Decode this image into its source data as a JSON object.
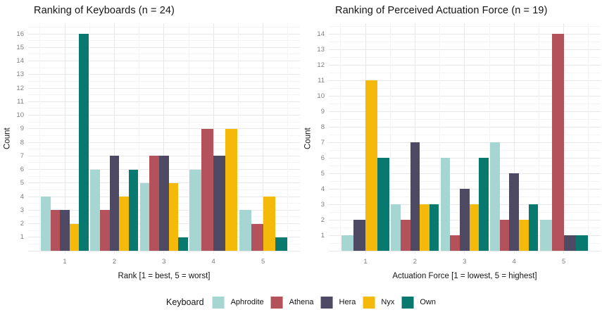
{
  "legend": {
    "title": "Keyboard",
    "entries": [
      {
        "label": "Aphrodite",
        "color": "#a5d6d2"
      },
      {
        "label": "Athena",
        "color": "#b4525b"
      },
      {
        "label": "Hera",
        "color": "#4f4a63"
      },
      {
        "label": "Nyx",
        "color": "#f5b90a"
      },
      {
        "label": "Own",
        "color": "#07796f"
      }
    ]
  },
  "chart_data": [
    {
      "type": "bar",
      "title": "Ranking of Keyboards (n = 24)",
      "xlabel": "Rank [1 = best, 5 = worst]",
      "ylabel": "Count",
      "categories": [
        "1",
        "2",
        "3",
        "4",
        "5"
      ],
      "series": [
        {
          "name": "Aphrodite",
          "color": "#a5d6d2",
          "values": [
            4,
            6,
            5,
            6,
            3
          ]
        },
        {
          "name": "Athena",
          "color": "#b4525b",
          "values": [
            3,
            3,
            7,
            9,
            2
          ]
        },
        {
          "name": "Hera",
          "color": "#4f4a63",
          "values": [
            3,
            7,
            7,
            7,
            0
          ]
        },
        {
          "name": "Nyx",
          "color": "#f5b90a",
          "values": [
            2,
            4,
            5,
            9,
            4
          ]
        },
        {
          "name": "Own",
          "color": "#07796f",
          "values": [
            16,
            6,
            1,
            0,
            1
          ]
        }
      ],
      "ylim": [
        0,
        16
      ],
      "ytick_step": 1,
      "grid": true,
      "legend_position": "bottom",
      "bar_mode": "dodge-hide-zeros"
    },
    {
      "type": "bar",
      "title": "Ranking of Perceived Actuation Force (n = 19)",
      "xlabel": "Actuation Force [1 = lowest, 5 = highest]",
      "ylabel": "Count",
      "categories": [
        "1",
        "2",
        "3",
        "4",
        "5"
      ],
      "series": [
        {
          "name": "Aphrodite",
          "color": "#a5d6d2",
          "values": [
            1,
            3,
            6,
            7,
            2
          ]
        },
        {
          "name": "Athena",
          "color": "#b4525b",
          "values": [
            0,
            2,
            1,
            2,
            14
          ]
        },
        {
          "name": "Hera",
          "color": "#4f4a63",
          "values": [
            2,
            7,
            4,
            5,
            1
          ]
        },
        {
          "name": "Nyx",
          "color": "#f5b90a",
          "values": [
            11,
            3,
            3,
            2,
            0
          ]
        },
        {
          "name": "Own",
          "color": "#07796f",
          "values": [
            6,
            3,
            6,
            3,
            1
          ]
        }
      ],
      "ylim": [
        0,
        14
      ],
      "ytick_step": 1,
      "grid": true,
      "legend_position": "bottom",
      "bar_mode": "dodge-hide-zeros"
    }
  ]
}
